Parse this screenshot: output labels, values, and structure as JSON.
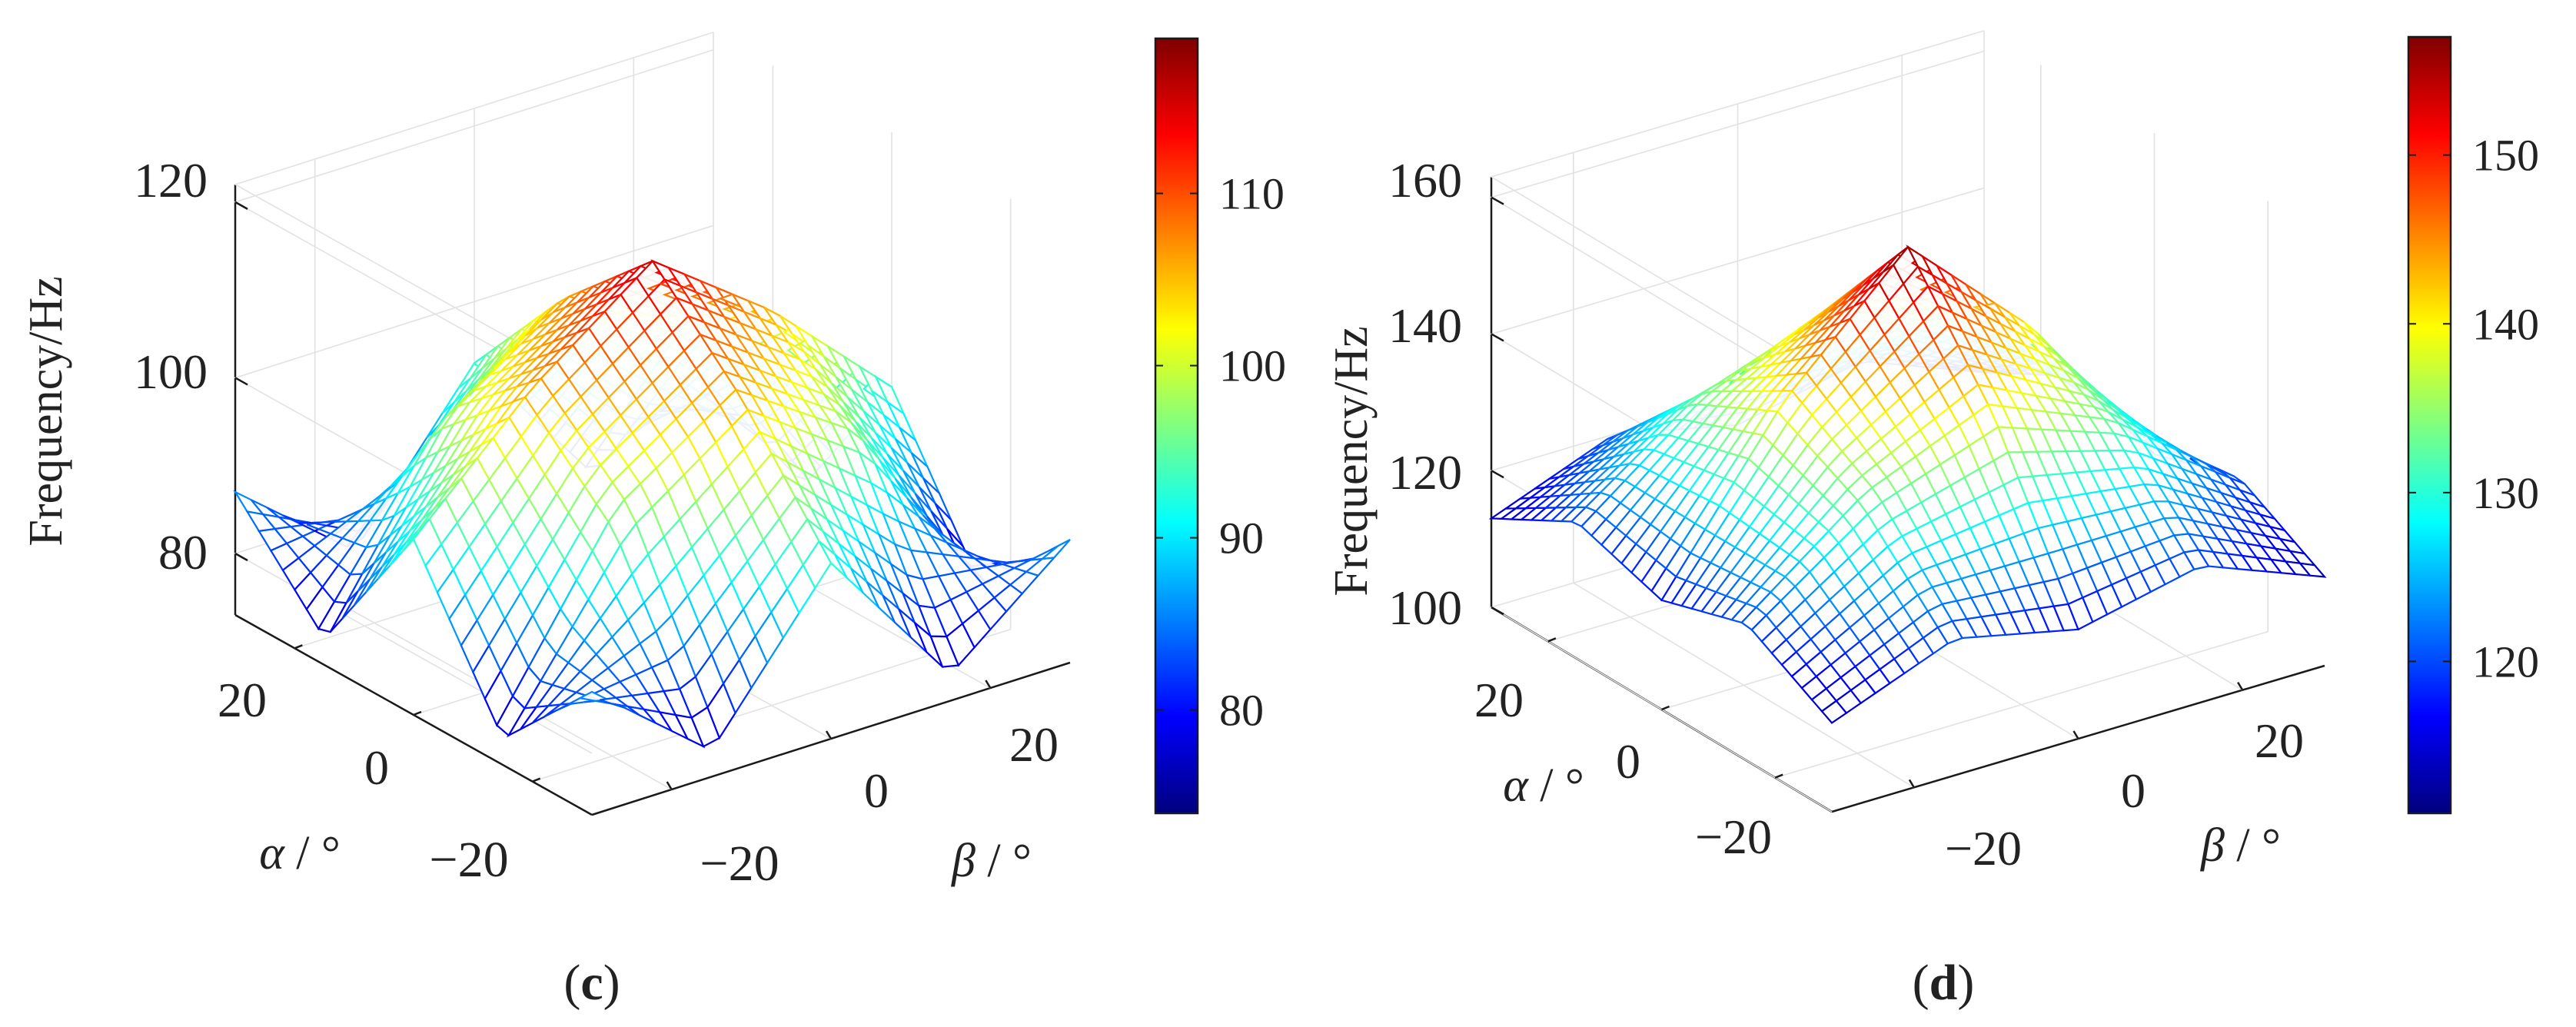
{
  "chart_data": [
    {
      "panel_label": "(c)",
      "panel_letter": "c",
      "type": "surface",
      "zlabel": "Frequency/Hz",
      "xlabel_symbol": "α",
      "xlabel_unit": " / °",
      "ylabel_symbol": "β",
      "ylabel_unit": " / °",
      "x_ticks": [
        -20,
        0,
        20
      ],
      "x_tick_labels": [
        "−20",
        "0",
        "20"
      ],
      "y_ticks": [
        -20,
        0,
        20
      ],
      "y_tick_labels": [
        "−20",
        "0",
        "20"
      ],
      "z_ticks": [
        80,
        100,
        120
      ],
      "z_tick_labels": [
        "80",
        "100",
        "120"
      ],
      "xlim": [
        -30,
        30
      ],
      "ylim": [
        -30,
        30
      ],
      "zlim": [
        73,
        122
      ],
      "colormap": "jet",
      "colorbar": {
        "range": [
          74,
          119
        ],
        "ticks": [
          80,
          90,
          100,
          110
        ],
        "tick_labels": [
          "80",
          "90",
          "100",
          "110"
        ]
      },
      "grid": true,
      "surface_samples": {
        "alpha": [
          -30,
          -15,
          0,
          15,
          30
        ],
        "beta": [
          -30,
          -15,
          0,
          15,
          30
        ],
        "frequency": [
          [
            87,
            76,
            93,
            76,
            87
          ],
          [
            76,
            97,
            106,
            97,
            76
          ],
          [
            93,
            106,
            116,
            106,
            93
          ],
          [
            76,
            97,
            106,
            97,
            76
          ],
          [
            87,
            76,
            93,
            76,
            87
          ]
        ]
      }
    },
    {
      "panel_label": "(d)",
      "panel_letter": "d",
      "type": "surface",
      "zlabel": "Frequency/Hz",
      "xlabel_symbol": "α",
      "xlabel_unit": " / °",
      "ylabel_symbol": "β",
      "ylabel_unit": " / °",
      "x_ticks": [
        -20,
        0,
        20
      ],
      "x_tick_labels": [
        "−20",
        "0",
        "20"
      ],
      "y_ticks": [
        -20,
        0,
        20
      ],
      "y_tick_labels": [
        "−20",
        "0",
        "20"
      ],
      "z_ticks": [
        100,
        120,
        140,
        160
      ],
      "z_tick_labels": [
        "100",
        "120",
        "140",
        "160"
      ],
      "xlim": [
        -30,
        30
      ],
      "ylim": [
        -30,
        30
      ],
      "zlim": [
        100,
        163
      ],
      "colormap": "jet",
      "colorbar": {
        "range": [
          111,
          157
        ],
        "ticks": [
          120,
          130,
          140,
          150
        ],
        "tick_labels": [
          "120",
          "130",
          "140",
          "150"
        ]
      },
      "grid": true,
      "surface_samples": {
        "alpha": [
          -30,
          -15,
          0,
          15,
          30
        ],
        "beta": [
          -30,
          -15,
          0,
          15,
          30
        ],
        "frequency": [
          [
            113,
            120,
            116,
            120,
            113
          ],
          [
            120,
            133,
            140,
            133,
            120
          ],
          [
            116,
            140,
            157,
            140,
            116
          ],
          [
            120,
            133,
            140,
            133,
            120
          ],
          [
            113,
            120,
            116,
            120,
            113
          ]
        ]
      }
    }
  ]
}
